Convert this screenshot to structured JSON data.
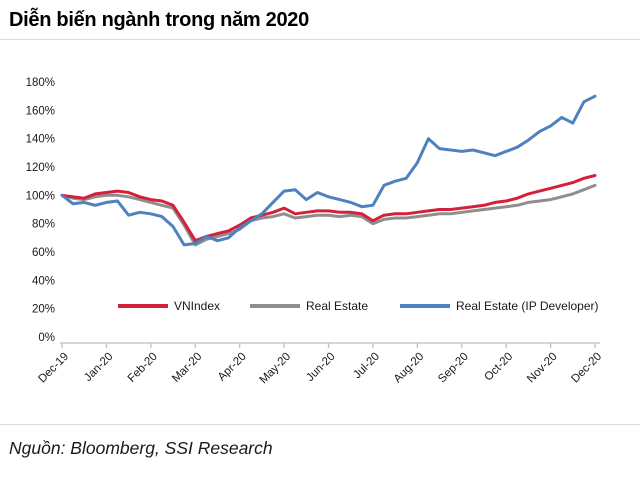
{
  "header": {
    "title": "Diễn biến ngành trong năm 2020"
  },
  "footer": {
    "source": "Nguồn: Bloomberg, SSI Research"
  },
  "chart_data": {
    "type": "line",
    "title": "Diễn biến ngành trong năm 2020",
    "xlabel": "",
    "ylabel": "",
    "x_categories": [
      "Dec-19",
      "Jan-20",
      "Feb-20",
      "Mar-20",
      "Apr-20",
      "May-20",
      "Jun-20",
      "Jul-20",
      "Aug-20",
      "Sep-20",
      "Oct-20",
      "Nov-20",
      "Dec-20"
    ],
    "points_per_month": 4,
    "ylim": [
      0,
      180
    ],
    "ytick_step": 20,
    "ytick_suffix": "%",
    "grid": false,
    "legend_position": "bottom-inside",
    "axis_color": "#bfbfbf",
    "text_color": "#1a1a1a",
    "series": [
      {
        "name": "VNIndex",
        "color": "#D3203B",
        "values": [
          100,
          99,
          98,
          101,
          102,
          103,
          102,
          99,
          97,
          96,
          93,
          81,
          68,
          71,
          73,
          75,
          79,
          84,
          86,
          88,
          91,
          87,
          88,
          89,
          89,
          88,
          88,
          87,
          82,
          86,
          87,
          87,
          88,
          89,
          90,
          90,
          91,
          92,
          93,
          95,
          96,
          98,
          101,
          103,
          105,
          107,
          109,
          112,
          114
        ]
      },
      {
        "name": "Real Estate",
        "color": "#8E8E8E",
        "values": [
          100,
          98,
          97,
          99,
          100,
          100,
          99,
          97,
          95,
          93,
          91,
          79,
          65,
          69,
          71,
          73,
          76,
          82,
          84,
          85,
          87,
          84,
          85,
          86,
          86,
          85,
          86,
          85,
          80,
          83,
          84,
          84,
          85,
          86,
          87,
          87,
          88,
          89,
          90,
          91,
          92,
          93,
          95,
          96,
          97,
          99,
          101,
          104,
          107
        ]
      },
      {
        "name": "Real Estate (IP Developer)",
        "color": "#4F81BD",
        "values": [
          100,
          94,
          95,
          93,
          95,
          96,
          86,
          88,
          87,
          85,
          78,
          65,
          66,
          71,
          68,
          70,
          77,
          82,
          87,
          95,
          103,
          104,
          97,
          102,
          99,
          97,
          95,
          92,
          93,
          107,
          110,
          112,
          123,
          140,
          133,
          132,
          131,
          132,
          130,
          128,
          131,
          134,
          139,
          145,
          149,
          155,
          151,
          166,
          170
        ]
      }
    ]
  }
}
